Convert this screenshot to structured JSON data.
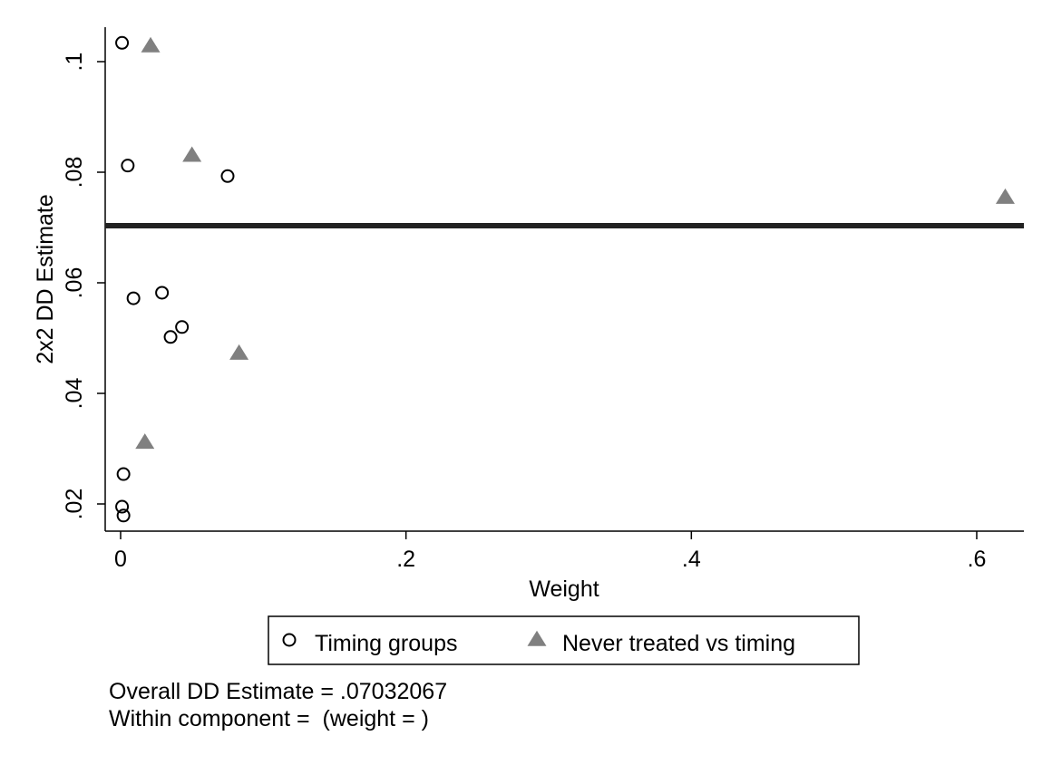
{
  "chart_data": {
    "type": "scatter",
    "xlabel": "Weight",
    "ylabel": "2x2 DD Estimate",
    "xlim": [
      0,
      0.63
    ],
    "ylim": [
      0.0173,
      0.1053
    ],
    "xticks": [
      0,
      0.2,
      0.4,
      0.6
    ],
    "xtick_labels": [
      "0",
      ".2",
      ".4",
      ".6"
    ],
    "yticks": [
      0.02,
      0.04,
      0.06,
      0.08,
      0.1
    ],
    "ytick_labels": [
      ".02",
      ".04",
      ".06",
      ".08",
      ".1"
    ],
    "grid": false,
    "legend_position": "bottom",
    "reference_line": {
      "y": 0.07032067,
      "color": "#222222"
    },
    "series": [
      {
        "name": "Timing groups",
        "marker": "hollow-circle",
        "color": "#000000",
        "points": [
          {
            "x": 0.001,
            "y": 0.1034
          },
          {
            "x": 0.005,
            "y": 0.0812
          },
          {
            "x": 0.075,
            "y": 0.0793
          },
          {
            "x": 0.009,
            "y": 0.0572
          },
          {
            "x": 0.029,
            "y": 0.0582
          },
          {
            "x": 0.043,
            "y": 0.052
          },
          {
            "x": 0.035,
            "y": 0.0502
          },
          {
            "x": 0.002,
            "y": 0.0254
          },
          {
            "x": 0.001,
            "y": 0.0195
          },
          {
            "x": 0.002,
            "y": 0.0179
          }
        ]
      },
      {
        "name": "Never treated vs timing",
        "marker": "filled-triangle",
        "color": "#808080",
        "points": [
          {
            "x": 0.021,
            "y": 0.1028
          },
          {
            "x": 0.05,
            "y": 0.083
          },
          {
            "x": 0.62,
            "y": 0.0754
          },
          {
            "x": 0.083,
            "y": 0.0472
          },
          {
            "x": 0.017,
            "y": 0.0311
          }
        ]
      }
    ]
  },
  "notes": {
    "overall": "Overall DD Estimate = .07032067",
    "within": "Within component =  (weight = )"
  }
}
